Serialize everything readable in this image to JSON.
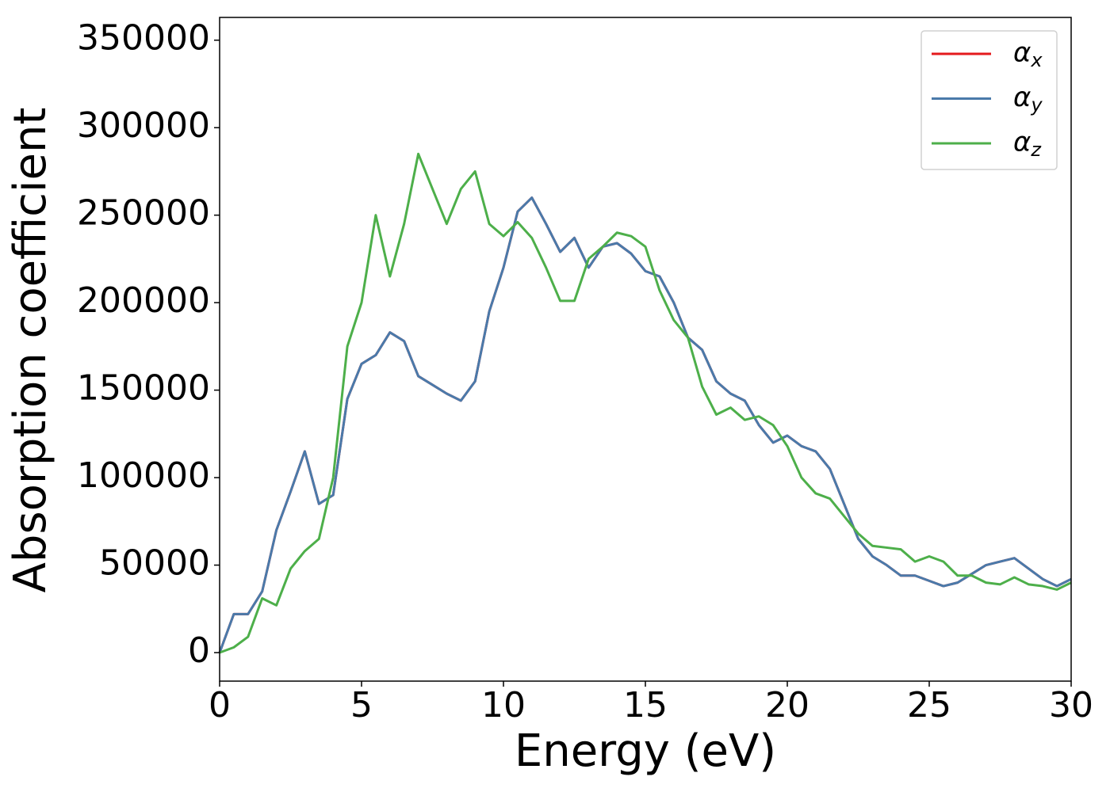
{
  "chart_data": {
    "type": "line",
    "x_label": "Energy (eV)",
    "y_label": "Absorption coefficient",
    "x": [
      0,
      0.5,
      1,
      1.5,
      2,
      2.5,
      3,
      3.5,
      4,
      4.5,
      5,
      5.5,
      6,
      6.5,
      7,
      7.5,
      8,
      8.5,
      9,
      9.5,
      10,
      10.5,
      11,
      11.5,
      12,
      12.5,
      13,
      13.5,
      14,
      14.5,
      15,
      15.5,
      16,
      16.5,
      17,
      17.5,
      18,
      18.5,
      19,
      19.5,
      20,
      20.5,
      21,
      21.5,
      22,
      22.5,
      23,
      23.5,
      24,
      24.5,
      25,
      25.5,
      26,
      26.5,
      27,
      27.5,
      28,
      28.5,
      29,
      29.5,
      30
    ],
    "series": [
      {
        "name": "αx",
        "color": "#e41a1c",
        "values": [
          0,
          22000,
          22000,
          35000,
          70000,
          92000,
          115000,
          85000,
          90000,
          145000,
          165000,
          170000,
          183000,
          178000,
          158000,
          153000,
          148000,
          144000,
          155000,
          195000,
          220000,
          252000,
          260000,
          245000,
          229000,
          237000,
          220000,
          232000,
          234000,
          228000,
          218000,
          215000,
          200000,
          180000,
          173000,
          155000,
          148000,
          144000,
          130000,
          120000,
          124000,
          118000,
          115000,
          105000,
          85000,
          65000,
          55000,
          50000,
          44000,
          44000,
          41000,
          38000,
          40000,
          45000,
          50000,
          52000,
          54000,
          48000,
          42000,
          38000,
          42000
        ]
      },
      {
        "name": "αy",
        "color": "#4a7aaa",
        "values": [
          0,
          22000,
          22000,
          35000,
          70000,
          92000,
          115000,
          85000,
          90000,
          145000,
          165000,
          170000,
          183000,
          178000,
          158000,
          153000,
          148000,
          144000,
          155000,
          195000,
          220000,
          252000,
          260000,
          245000,
          229000,
          237000,
          220000,
          232000,
          234000,
          228000,
          218000,
          215000,
          200000,
          180000,
          173000,
          155000,
          148000,
          144000,
          130000,
          120000,
          124000,
          118000,
          115000,
          105000,
          85000,
          65000,
          55000,
          50000,
          44000,
          44000,
          41000,
          38000,
          40000,
          45000,
          50000,
          52000,
          54000,
          48000,
          42000,
          38000,
          42000
        ]
      },
      {
        "name": "αz",
        "color": "#4daf4a",
        "values": [
          0,
          3000,
          9000,
          31000,
          27000,
          48000,
          58000,
          65000,
          100000,
          175000,
          200000,
          250000,
          215000,
          245000,
          285000,
          265000,
          245000,
          265000,
          275000,
          245000,
          238000,
          246000,
          237000,
          220000,
          201000,
          201000,
          225000,
          232000,
          240000,
          238000,
          232000,
          207000,
          190000,
          180000,
          152000,
          136000,
          140000,
          133000,
          135000,
          130000,
          118000,
          100000,
          91000,
          88000,
          78000,
          68000,
          61000,
          60000,
          59000,
          52000,
          55000,
          52000,
          44000,
          44000,
          40000,
          39000,
          43000,
          39000,
          38000,
          36000,
          40000
        ]
      }
    ],
    "xlim": [
      0,
      30
    ],
    "xticks": [
      0,
      5,
      10,
      15,
      20,
      25,
      30
    ],
    "ylim": [
      -16300,
      363000
    ],
    "yticks": [
      0,
      50000,
      100000,
      150000,
      200000,
      250000,
      300000,
      350000
    ],
    "legend": "upper right"
  }
}
